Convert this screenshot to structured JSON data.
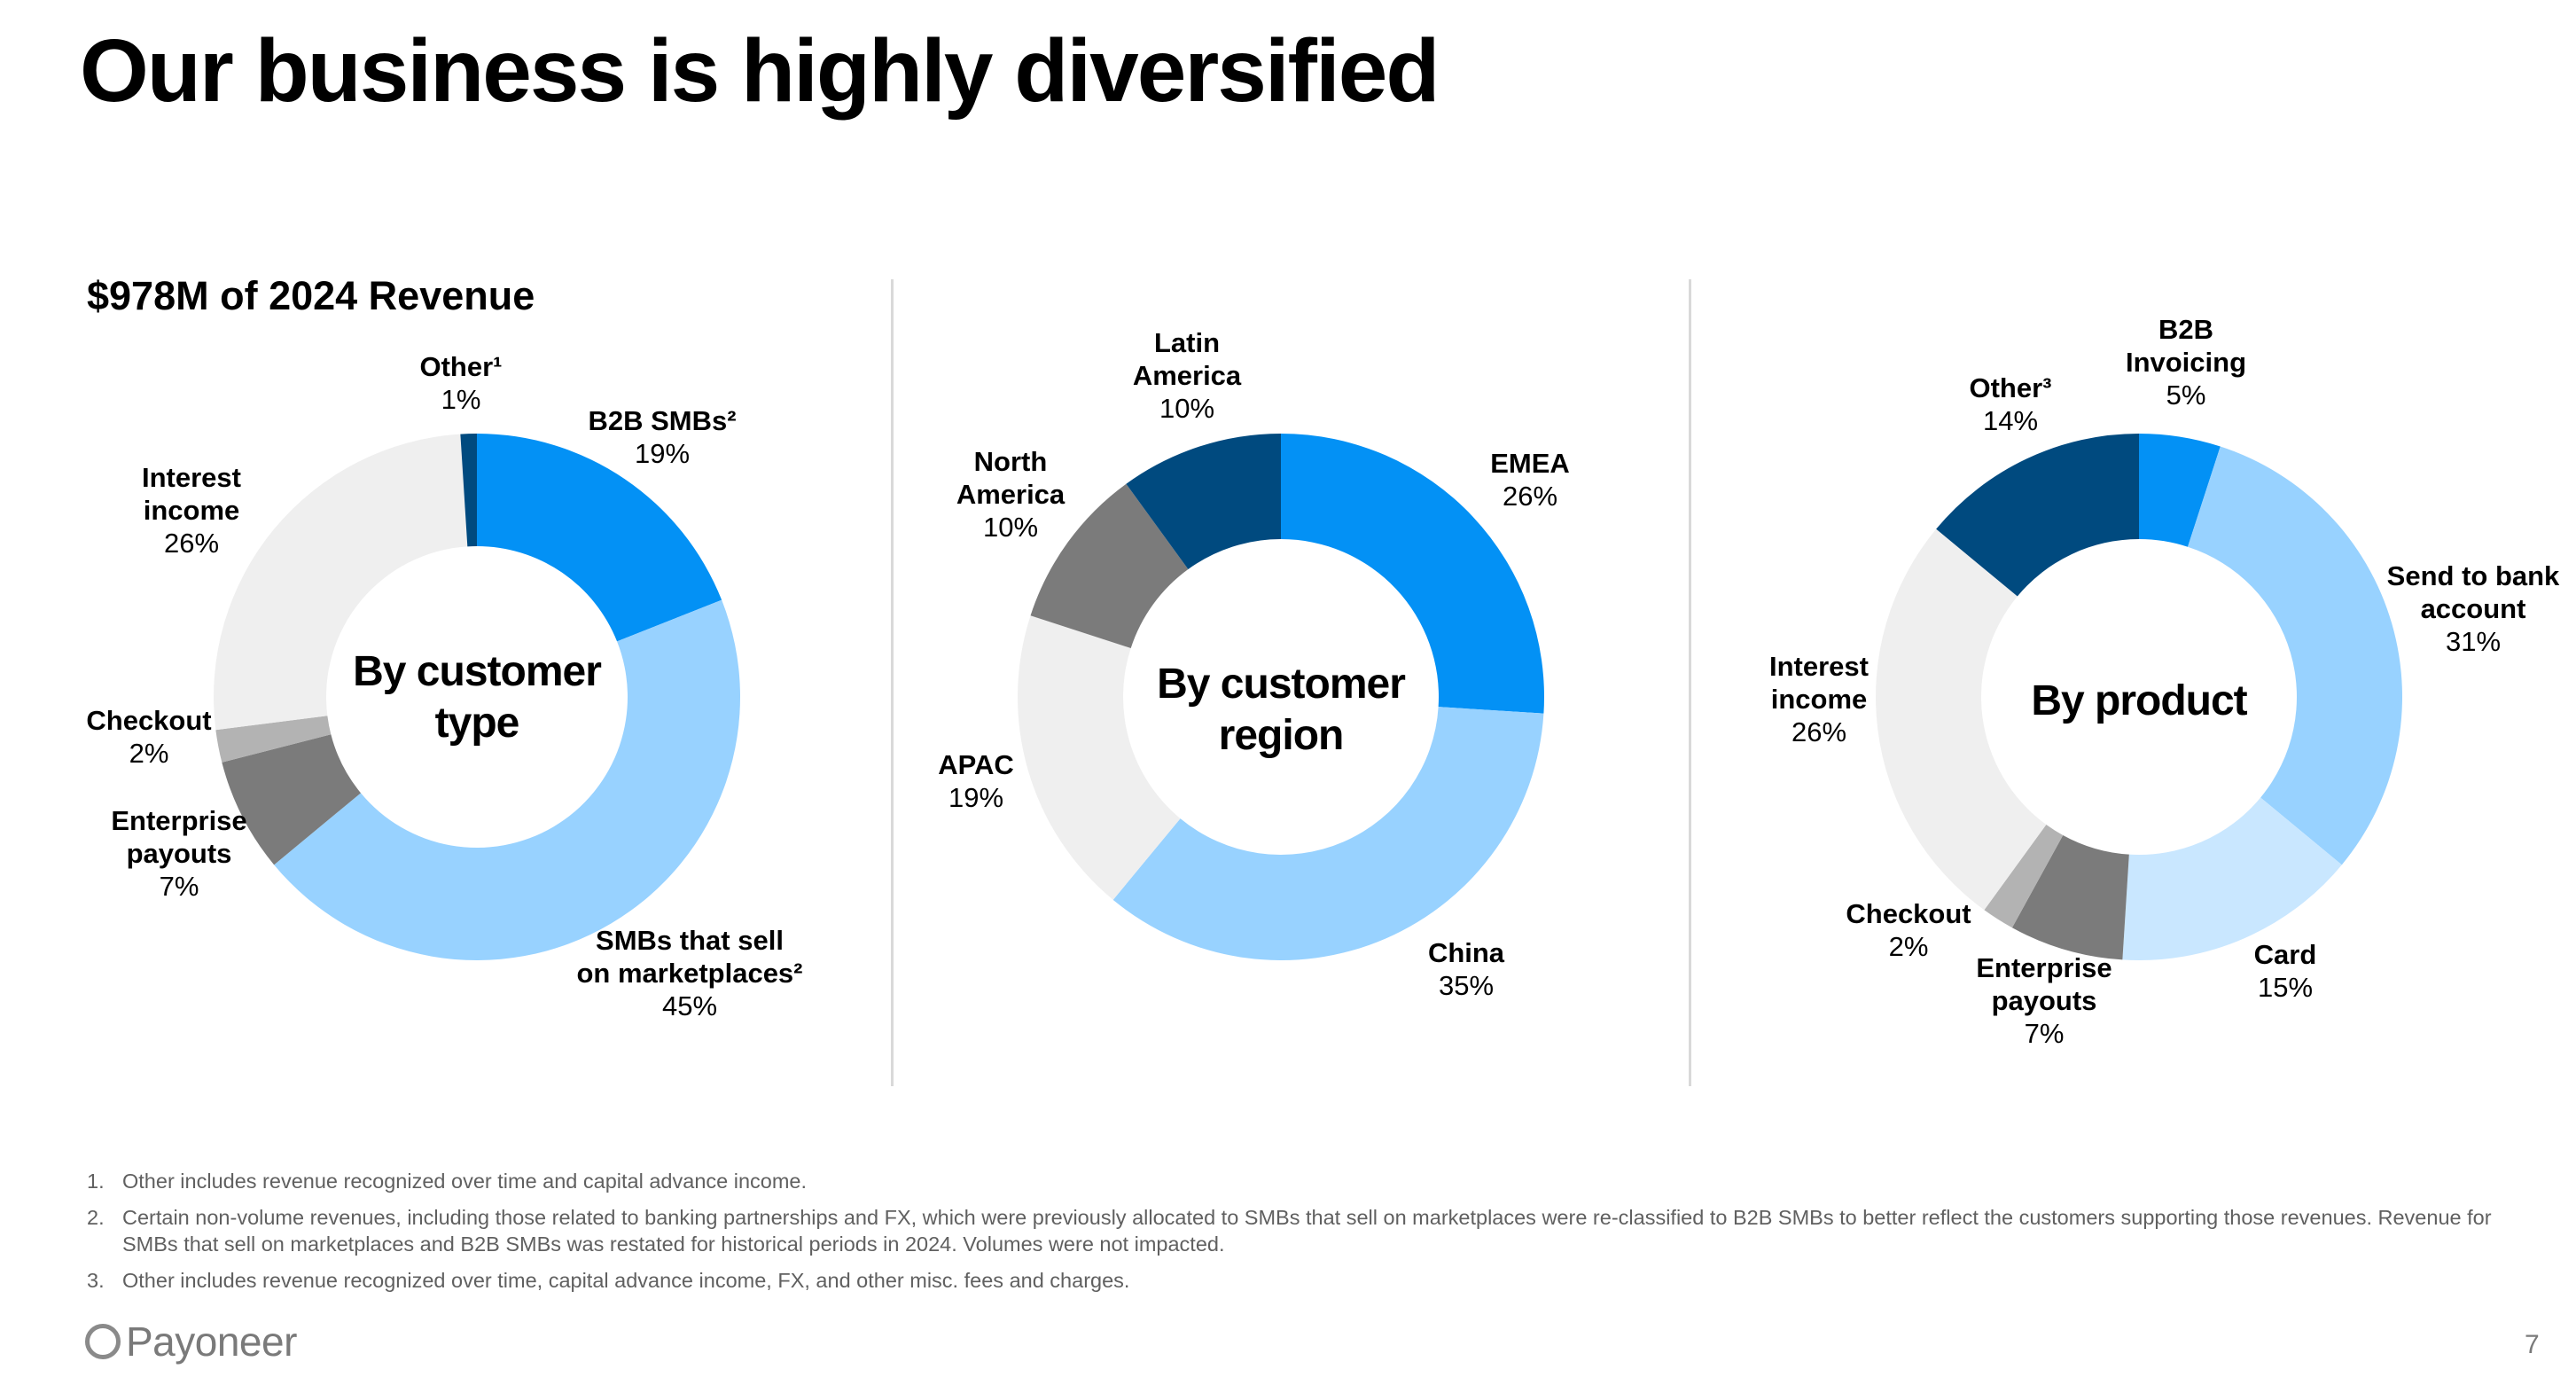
{
  "page": {
    "title": "Our business is highly diversified",
    "subtitle": "$978M of 2024 Revenue",
    "page_number": "7"
  },
  "logo": {
    "text": "Payoneer"
  },
  "footnotes": [
    {
      "num": "1.",
      "text": "Other includes revenue recognized over time and capital advance income."
    },
    {
      "num": "2.",
      "text": "Certain non-volume revenues, including those related to banking partnerships and FX, which were previously allocated to SMBs that sell on marketplaces were re-classified to B2B SMBs to better reflect the customers supporting those revenues. Revenue for SMBs that sell on marketplaces and B2B SMBs was restated for historical periods in 2024. Volumes were not impacted."
    },
    {
      "num": "3.",
      "text": "Other includes revenue recognized over time, capital advance income, FX, and other misc. fees and charges."
    }
  ],
  "chart_data": [
    {
      "type": "pie",
      "variant": "donut",
      "title": "$978M of 2024 Revenue",
      "center_label": [
        "By customer",
        "type"
      ],
      "segments": [
        {
          "name": "B2B SMBs²",
          "value": 19,
          "label": "19%",
          "color": "#0391f5"
        },
        {
          "name": "SMBs that sell on marketplaces²",
          "value": 45,
          "label": "45%",
          "color": "#98d2ff"
        },
        {
          "name": "Enterprise payouts",
          "value": 7,
          "label": "7%",
          "color": "#7b7b7b"
        },
        {
          "name": "Checkout",
          "value": 2,
          "label": "2%",
          "color": "#b3b3b3"
        },
        {
          "name": "Interest income",
          "value": 26,
          "label": "26%",
          "color": "#efefef"
        },
        {
          "name": "Other¹",
          "value": 1,
          "label": "1%",
          "color": "#004a7f"
        }
      ]
    },
    {
      "type": "pie",
      "variant": "donut",
      "center_label": [
        "By customer",
        "region"
      ],
      "segments": [
        {
          "name": "EMEA",
          "value": 26,
          "label": "26%",
          "color": "#0391f5"
        },
        {
          "name": "China",
          "value": 35,
          "label": "35%",
          "color": "#98d2ff"
        },
        {
          "name": "APAC",
          "value": 19,
          "label": "19%",
          "color": "#efefef"
        },
        {
          "name": "North America",
          "value": 10,
          "label": "10%",
          "color": "#7b7b7b"
        },
        {
          "name": "Latin America",
          "value": 10,
          "label": "10%",
          "color": "#004a7f"
        }
      ]
    },
    {
      "type": "pie",
      "variant": "donut",
      "center_label": [
        "By product"
      ],
      "segments": [
        {
          "name": "B2B Invoicing",
          "value": 5,
          "label": "5%",
          "color": "#0391f5"
        },
        {
          "name": "Send to bank account",
          "value": 31,
          "label": "31%",
          "color": "#98d2ff"
        },
        {
          "name": "Card",
          "value": 15,
          "label": "15%",
          "color": "#c9e7ff"
        },
        {
          "name": "Enterprise payouts",
          "value": 7,
          "label": "7%",
          "color": "#7b7b7b"
        },
        {
          "name": "Checkout",
          "value": 2,
          "label": "2%",
          "color": "#b3b3b3"
        },
        {
          "name": "Interest income",
          "value": 26,
          "label": "26%",
          "color": "#efefef"
        },
        {
          "name": "Other³",
          "value": 14,
          "label": "14%",
          "color": "#004a7f"
        }
      ]
    }
  ]
}
